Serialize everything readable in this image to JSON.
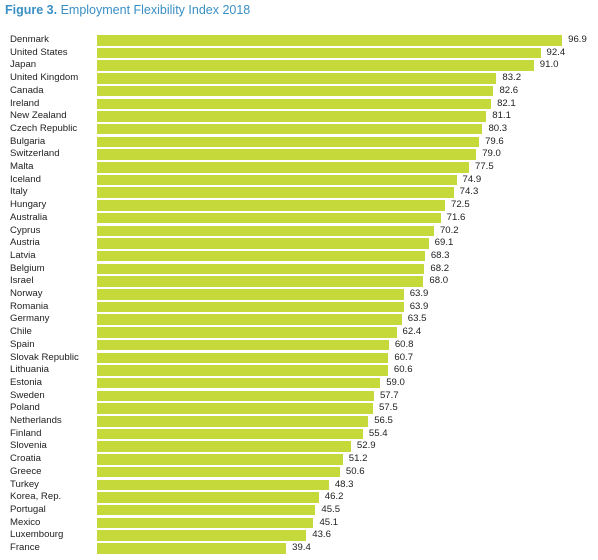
{
  "title": {
    "prefix": "Figure 3.",
    "text": "Employment Flexibility Index 2018"
  },
  "colors": {
    "bar": "#c6d93b",
    "title": "#3a8fc4"
  },
  "chart_data": {
    "type": "bar",
    "orientation": "horizontal",
    "title": "Employment Flexibility Index 2018",
    "xlim": [
      0,
      100
    ],
    "grid": false,
    "categories": [
      "Denmark",
      "United States",
      "Japan",
      "United Kingdom",
      "Canada",
      "Ireland",
      "New Zealand",
      "Czech Republic",
      "Bulgaria",
      "Switzerland",
      "Malta",
      "Iceland",
      "Italy",
      "Hungary",
      "Australia",
      "Cyprus",
      "Austria",
      "Latvia",
      "Belgium",
      "Israel",
      "Norway",
      "Romania",
      "Germany",
      "Chile",
      "Spain",
      "Slovak Republic",
      "Lithuania",
      "Estonia",
      "Sweden",
      "Poland",
      "Netherlands",
      "Finland",
      "Slovenia",
      "Croatia",
      "Greece",
      "Turkey",
      "Korea, Rep.",
      "Portugal",
      "Mexico",
      "Luxembourg",
      "France"
    ],
    "values": [
      96.9,
      92.4,
      91.0,
      83.2,
      82.6,
      82.1,
      81.1,
      80.3,
      79.6,
      79.0,
      77.5,
      74.9,
      74.3,
      72.5,
      71.6,
      70.2,
      69.1,
      68.3,
      68.2,
      68.0,
      63.9,
      63.9,
      63.5,
      62.4,
      60.8,
      60.7,
      60.6,
      59.0,
      57.7,
      57.5,
      56.5,
      55.4,
      52.9,
      51.2,
      50.6,
      48.3,
      46.2,
      45.5,
      45.1,
      43.6,
      39.4
    ]
  }
}
